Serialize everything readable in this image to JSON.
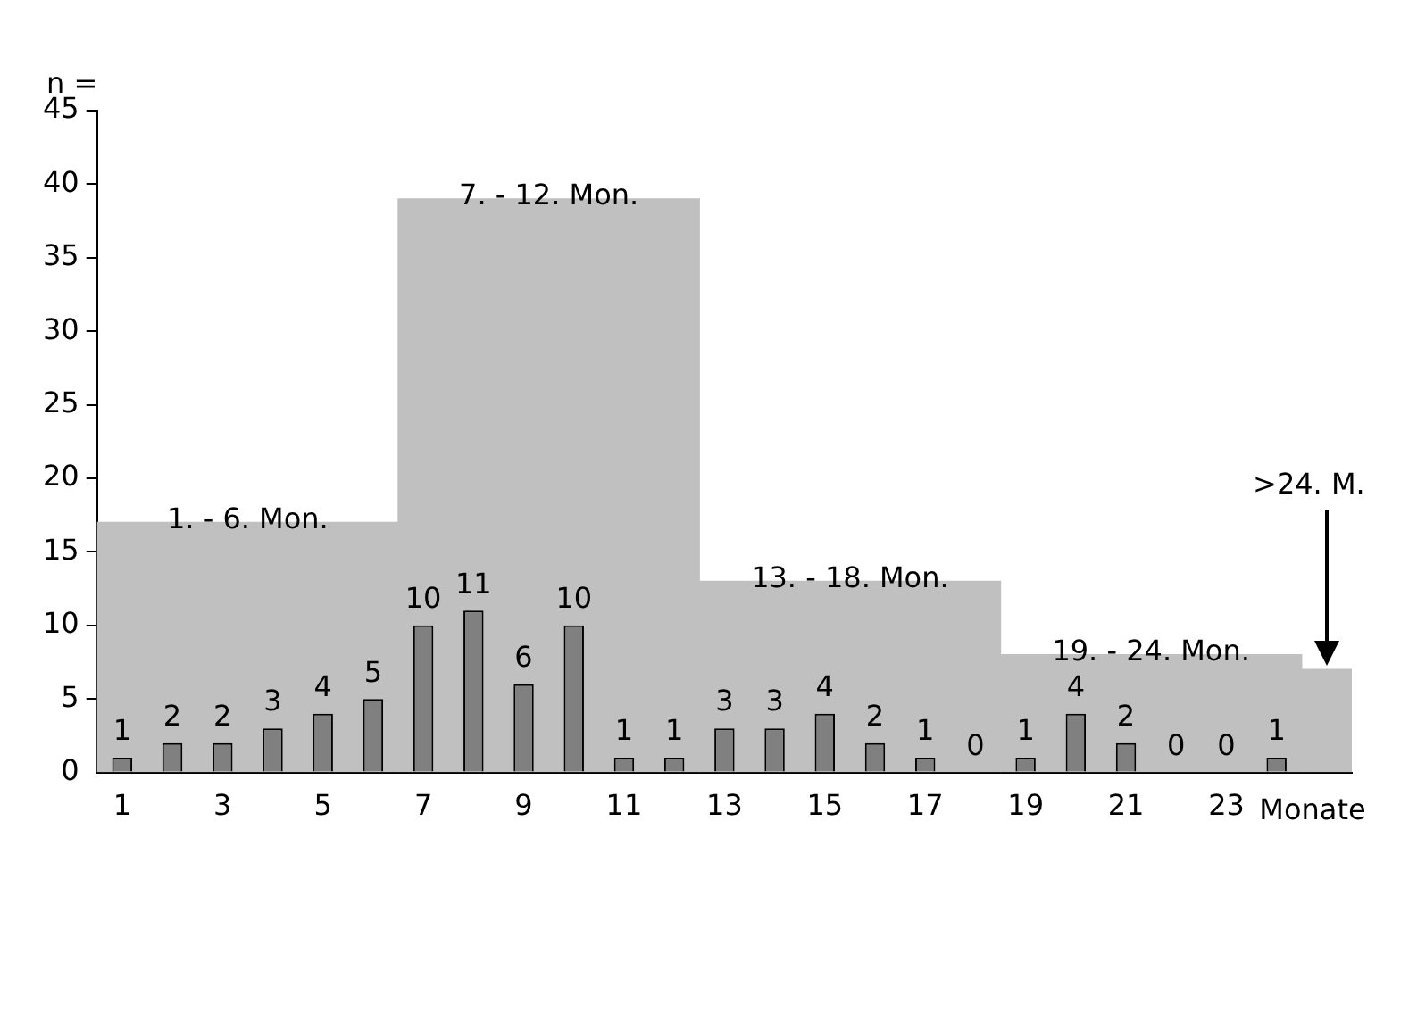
{
  "chart_data": {
    "type": "histogram",
    "xlabel": "Monate",
    "ylabel": "n =",
    "xlim": [
      0.5,
      25.5
    ],
    "xticks": [
      1,
      3,
      5,
      7,
      9,
      11,
      13,
      15,
      17,
      19,
      21,
      23
    ],
    "ylim": [
      0,
      45
    ],
    "yticks": [
      0,
      5,
      10,
      15,
      20,
      25,
      30,
      35,
      40,
      45
    ],
    "series": [
      {
        "color": "#c0c0c0",
        "bins": [
          0.5,
          6.5,
          12.5,
          18.5,
          24.5,
          25.5
        ],
        "values": [
          17,
          39,
          13,
          8,
          7
        ]
      },
      {
        "type": "bar",
        "color": "#808080",
        "x": [
          1,
          2,
          3,
          4,
          5,
          6,
          7,
          8,
          9,
          10,
          11,
          12,
          13,
          14,
          15,
          16,
          17,
          18,
          19,
          20,
          21,
          22,
          23,
          24
        ],
        "values": [
          1,
          2,
          2,
          3,
          4,
          5,
          10,
          11,
          6,
          10,
          1,
          1,
          3,
          3,
          4,
          2,
          1,
          0,
          1,
          4,
          2,
          0,
          0,
          1
        ],
        "value_labels": [
          "1",
          "2",
          "2",
          "3",
          "4",
          "5",
          "10",
          "11",
          "6",
          "10",
          "1",
          "1",
          "3",
          "3",
          "4",
          "2",
          "1",
          "0",
          "1",
          "4",
          "2",
          "0",
          "0",
          "1"
        ]
      }
    ],
    "annotations": [
      "1. - 6. Mon.",
      "7. - 12. Mon.",
      "13. - 18. Mon.",
      "19. - 24. Mon.",
      ">24. M."
    ],
    "grid": false,
    "legend": false
  }
}
